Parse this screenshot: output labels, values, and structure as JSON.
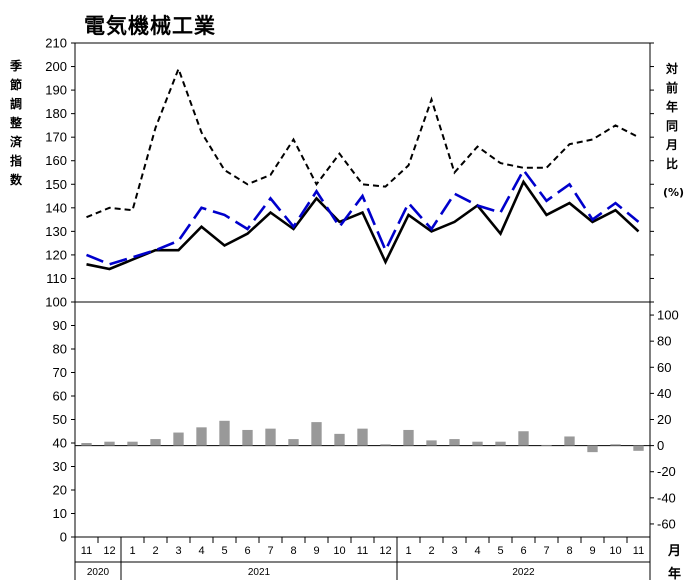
{
  "chart_data": {
    "type": "line",
    "title": "電気機械工業",
    "ylabel_left": "季節調整済指数",
    "ylabel_right": "対前年同月比",
    "right_unit": "(%)",
    "month_axis_label": "月",
    "year_axis_label": "年",
    "months": [
      "11",
      "12",
      "1",
      "2",
      "3",
      "4",
      "5",
      "6",
      "7",
      "8",
      "9",
      "10",
      "11",
      "12",
      "1",
      "2",
      "3",
      "4",
      "5",
      "6",
      "7",
      "8",
      "9",
      "10",
      "11"
    ],
    "years": [
      {
        "label": "2020",
        "span": [
          0,
          1
        ]
      },
      {
        "label": "2021",
        "span": [
          2,
          13
        ]
      },
      {
        "label": "2022",
        "span": [
          14,
          24
        ]
      }
    ],
    "upper_panel": {
      "ylim": [
        100,
        210
      ],
      "yticks": [
        "100",
        "110",
        "120",
        "130",
        "140",
        "150",
        "160",
        "170",
        "180",
        "190",
        "200",
        "210"
      ],
      "series": [
        {
          "style": "solid",
          "color": "#000000",
          "values": [
            116,
            114,
            118,
            122,
            122,
            132,
            124,
            129,
            138,
            131,
            144,
            134,
            138,
            117,
            137,
            130,
            134,
            141,
            129,
            151,
            137,
            142,
            134,
            139,
            130
          ]
        },
        {
          "style": "long-dash",
          "color": "#0000cc",
          "values": [
            120,
            116,
            119,
            122,
            126,
            140,
            137,
            131,
            144,
            132,
            147,
            132,
            145,
            122,
            142,
            131,
            146,
            141,
            138,
            156,
            143,
            150,
            135,
            142,
            134
          ]
        },
        {
          "style": "short-dash",
          "color": "#000000",
          "values": [
            136,
            140,
            139,
            174,
            199,
            172,
            156,
            150,
            154,
            169,
            150,
            163,
            150,
            149,
            158,
            186,
            155,
            166,
            159,
            157,
            157,
            167,
            169,
            175,
            170
          ]
        }
      ]
    },
    "lower_panel": {
      "ylim_left": [
        0,
        100
      ],
      "yticks_left": [
        "0",
        "10",
        "20",
        "30",
        "40",
        "50",
        "60",
        "70",
        "80",
        "90",
        "100"
      ],
      "ylim_right": [
        -70,
        110
      ],
      "yticks_right": [
        "-60",
        "-40",
        "-20",
        "0",
        "20",
        "40",
        "60",
        "80",
        "100"
      ],
      "bar_color": "#999999",
      "bars": [
        2,
        3,
        3,
        5,
        10,
        14,
        19,
        12,
        13,
        5,
        18,
        9,
        13,
        1,
        12,
        4,
        5,
        3,
        3,
        11,
        0.5,
        7,
        -5,
        1,
        -4
      ]
    }
  }
}
